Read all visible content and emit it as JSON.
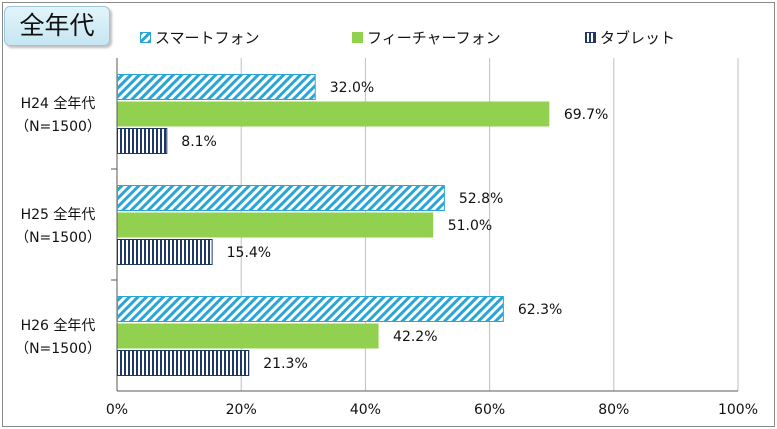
{
  "colors": {
    "smartphone": "#2aa6d6",
    "feature_phone": "#92d050",
    "tablet": "#1f3864"
  },
  "chart_data": {
    "type": "bar",
    "orientation": "horizontal",
    "title": "全年代",
    "categories": [
      [
        "H24 全年代",
        "（N=1500）"
      ],
      [
        "H25 全年代",
        "（N=1500）"
      ],
      [
        "H26 全年代",
        "（N=1500）"
      ]
    ],
    "series": [
      {
        "name": "スマートフォン",
        "values": [
          32.0,
          52.8,
          62.3
        ],
        "labels": [
          "32.0%",
          "52.8%",
          "62.3%"
        ],
        "pattern": "diagonal-hatch"
      },
      {
        "name": "フィーチャーフォン",
        "values": [
          69.7,
          51.0,
          42.2
        ],
        "labels": [
          "69.7%",
          "51.0%",
          "42.2%"
        ],
        "pattern": "solid"
      },
      {
        "name": "タブレット",
        "values": [
          8.1,
          15.4,
          21.3
        ],
        "labels": [
          "8.1%",
          "15.4%",
          "21.3%"
        ],
        "pattern": "vertical-stripes"
      }
    ],
    "xlim": [
      0,
      100
    ],
    "xticks": [
      "0%",
      "20%",
      "40%",
      "60%",
      "80%",
      "100%"
    ],
    "grid": true,
    "legend": "top"
  }
}
